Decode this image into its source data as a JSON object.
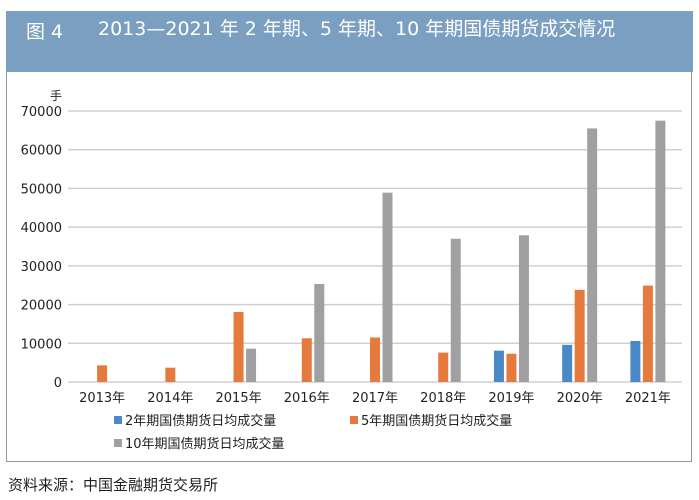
{
  "header": {
    "figure_label": "图 4",
    "title": "2013—2021 年 2 年期、5 年期、10 年期国债期货成交情况"
  },
  "source": "资料来源：中国金融期货交易所",
  "chart_data": {
    "type": "bar",
    "ylabel": "手",
    "ylim": [
      0,
      70000
    ],
    "yticks": [
      0,
      10000,
      20000,
      30000,
      40000,
      50000,
      60000,
      70000
    ],
    "grid": true,
    "legend_position": "bottom",
    "categories": [
      "2013年",
      "2014年",
      "2015年",
      "2016年",
      "2017年",
      "2018年",
      "2019年",
      "2020年",
      "2021年"
    ],
    "series": [
      {
        "name": "2年期国债期货日均成交量",
        "color": "#4a89c8",
        "values": [
          null,
          null,
          null,
          null,
          null,
          null,
          8100,
          9600,
          10600
        ]
      },
      {
        "name": "5年期国债期货日均成交量",
        "color": "#e57a3c",
        "values": [
          4300,
          3700,
          18100,
          11300,
          11500,
          7600,
          7300,
          23800,
          24900
        ]
      },
      {
        "name": "10年期国债期货日均成交量",
        "color": "#a0a0a3",
        "values": [
          null,
          null,
          8600,
          25300,
          48900,
          37000,
          37900,
          65500,
          67500
        ]
      }
    ]
  }
}
